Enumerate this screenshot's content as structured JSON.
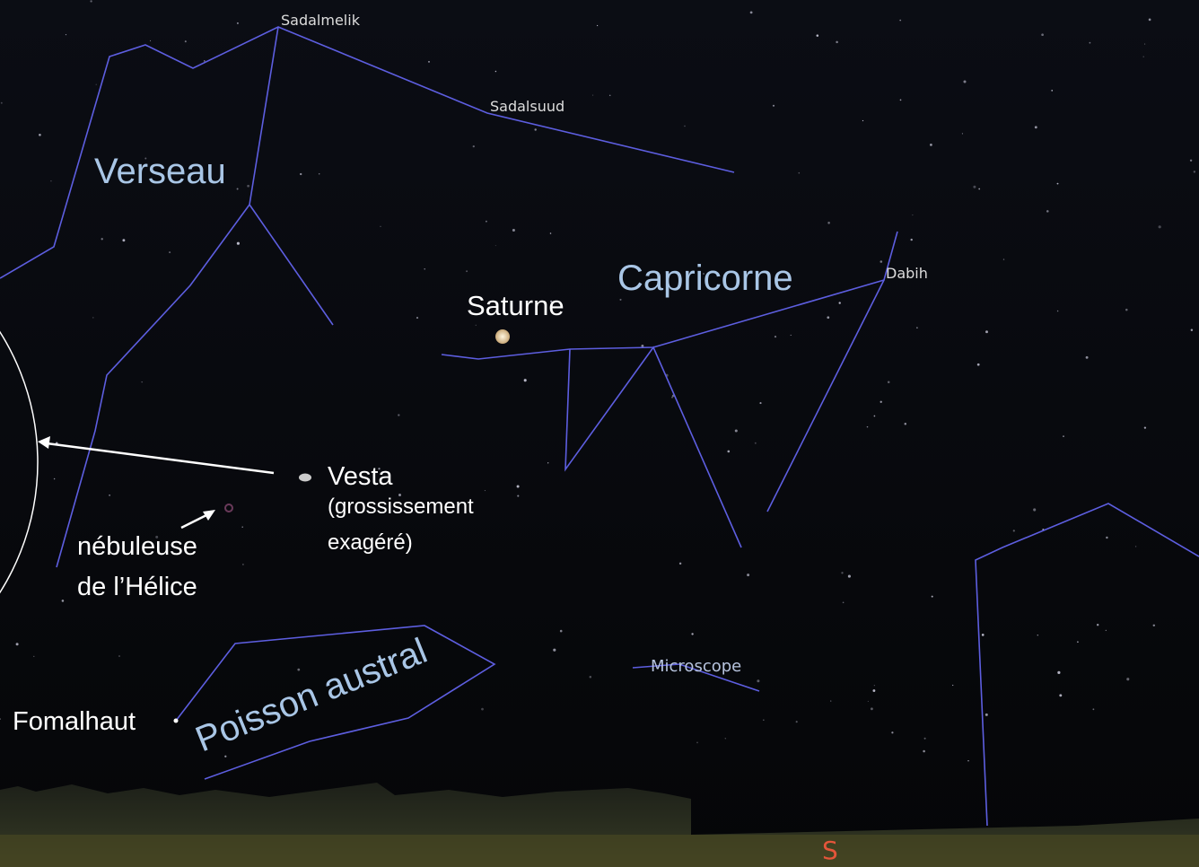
{
  "stars": {
    "sadalmelik": "Sadalmelik",
    "sadalsuud": "Sadalsuud",
    "dabih": "Dabih",
    "fomalhaut": "Fomalhaut"
  },
  "constellations": {
    "aquarius": "Verseau",
    "capricornus": "Capricorne",
    "piscis_austrinus": "Poisson austral",
    "microscopium": "Microscope"
  },
  "objects": {
    "saturn": "Saturne",
    "vesta": {
      "name": "Vesta",
      "note_line1": "(grossissement",
      "note_line2": "exagéré)"
    },
    "helix": {
      "line1": "nébuleuse",
      "line2": "de l’Hélice"
    }
  },
  "compass": "S"
}
